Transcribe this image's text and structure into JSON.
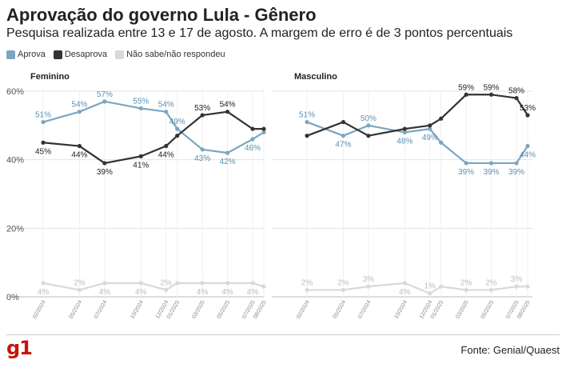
{
  "title": "Aprovação do governo Lula - Gênero",
  "subtitle": "Pesquisa realizada entre 13 e 17 de agosto. A margem de erro é de 3 pontos percentuais",
  "source": "Fonte: Genial/Quaest",
  "logo": "g1",
  "colors": {
    "aprova": "#7aa6c2",
    "desaprova": "#333333",
    "nao_sabe": "#d9d9d9"
  },
  "legend": [
    {
      "name": "Aprova",
      "color": "#7aa6c2"
    },
    {
      "name": "Desaprova",
      "color": "#333333"
    },
    {
      "name": "Não sabe/não respondeu",
      "color": "#d9d9d9"
    }
  ],
  "chart_data": [
    {
      "type": "line",
      "title": "Feminino",
      "ylim": [
        0,
        60
      ],
      "yticks": [
        "0%",
        "20%",
        "40%",
        "60%"
      ],
      "grid": true,
      "x": [
        0,
        0.13,
        0.22,
        0.35,
        0.44,
        0.48,
        0.57,
        0.66,
        0.75,
        0.79
      ],
      "x_tick_labels": [
        "02/2024",
        "05/2024",
        "07/2024",
        "10/2024",
        "12/2024",
        "01/2025",
        "03/2025",
        "05/2025",
        "07/2025",
        "08/2025"
      ],
      "series": [
        {
          "name": "Aprova",
          "values": [
            51,
            54,
            57,
            55,
            54,
            49,
            43,
            42,
            46,
            48
          ],
          "labels": [
            "51%",
            "54%",
            "57%",
            "55%",
            "54%",
            "49%",
            "43%",
            "42%",
            "46%",
            ""
          ]
        },
        {
          "name": "Desaprova",
          "values": [
            45,
            44,
            39,
            41,
            44,
            47,
            53,
            54,
            49,
            49
          ],
          "labels": [
            "45%",
            "44%",
            "39%",
            "41%",
            "44%",
            "",
            "53%",
            "54%",
            "",
            ""
          ]
        },
        {
          "name": "Não sabe/não respondeu",
          "values": [
            4,
            2,
            4,
            4,
            2,
            4,
            4,
            4,
            4,
            3
          ],
          "labels": [
            "4%",
            "2%",
            "4%",
            "4%",
            "2%",
            "",
            "4%",
            "4%",
            "4%",
            ""
          ]
        }
      ]
    },
    {
      "type": "line",
      "title": "Masculino",
      "ylim": [
        0,
        60
      ],
      "yticks": [
        "0%",
        "20%",
        "40%",
        "60%"
      ],
      "grid": true,
      "x": [
        0,
        0.13,
        0.22,
        0.35,
        0.44,
        0.48,
        0.57,
        0.66,
        0.75,
        0.79
      ],
      "x_tick_labels": [
        "02/2024",
        "05/2024",
        "07/2024",
        "10/2024",
        "12/2024",
        "01/2025",
        "03/2025",
        "05/2025",
        "07/2025",
        "08/2025"
      ],
      "series": [
        {
          "name": "Aprova",
          "values": [
            51,
            47,
            50,
            48,
            49,
            45,
            39,
            39,
            39,
            44
          ],
          "labels": [
            "51%",
            "47%",
            "50%",
            "48%",
            "49%",
            "",
            "39%",
            "39%",
            "39%",
            "44%"
          ]
        },
        {
          "name": "Desaprova",
          "values": [
            47,
            51,
            47,
            49,
            50,
            52,
            59,
            59,
            58,
            53
          ],
          "labels": [
            "",
            "",
            "",
            "",
            "",
            "",
            "59%",
            "59%",
            "58%",
            "53%"
          ]
        },
        {
          "name": "Não sabe/não respondeu",
          "values": [
            2,
            2,
            3,
            4,
            1,
            3,
            2,
            2,
            3,
            3
          ],
          "labels": [
            "2%",
            "2%",
            "3%",
            "4%",
            "1%",
            "",
            "2%",
            "2%",
            "3%",
            ""
          ]
        }
      ]
    }
  ]
}
